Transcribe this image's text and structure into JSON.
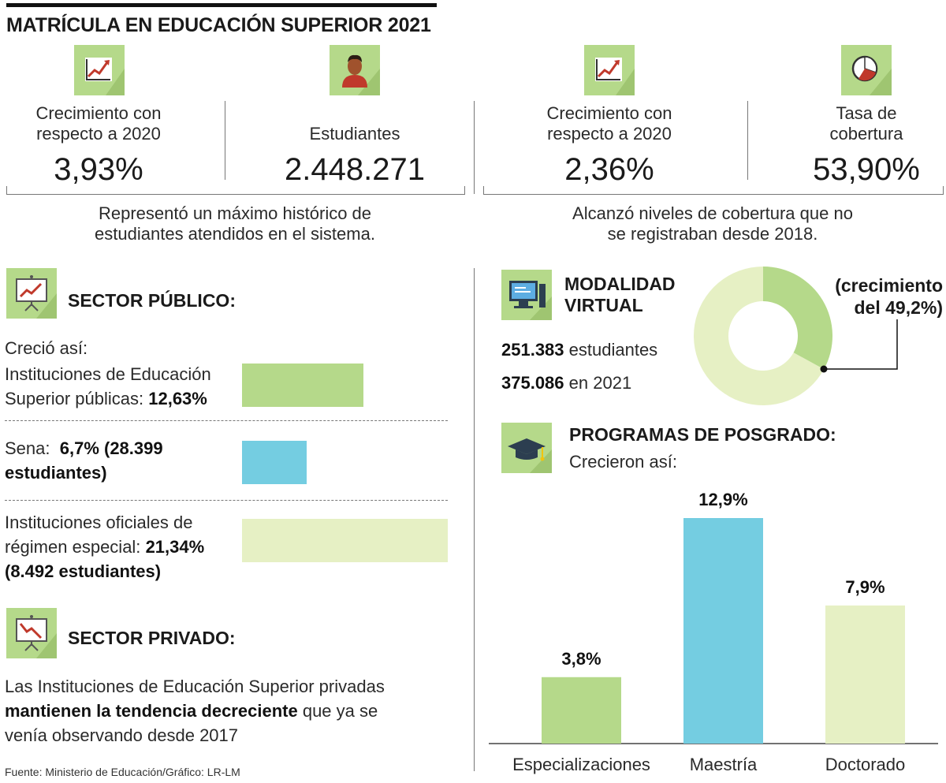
{
  "title": "MATRÍCULA EN EDUCACIÓN SUPERIOR 2021",
  "stats": [
    {
      "label": "Crecimiento con respecto a 2020",
      "value": "3,93%",
      "icon": "chart-growth-icon"
    },
    {
      "label": "Estudiantes",
      "value": "2.448.271",
      "icon": "student-icon"
    },
    {
      "label": "Crecimiento con respecto a 2020",
      "value": "2,36%",
      "icon": "chart-growth-icon"
    },
    {
      "label": "Tasa de cobertura",
      "value": "53,90%",
      "icon": "pie-icon"
    }
  ],
  "notes": {
    "left": "Representó un máximo histórico de estudiantes atendidos en el sistema.",
    "right": "Alcanzó niveles de cobertura que no se registraban desde 2018."
  },
  "publico": {
    "heading": "SECTOR PÚBLICO:",
    "intro": "Creció así:",
    "items": [
      {
        "text": "Instituciones de Educación Superior públicas:",
        "bold": "12,63%",
        "value": 12.63,
        "color": "#b5d98a"
      },
      {
        "text": "Sena:",
        "bold": "6,7% (28.399 estudiantes)",
        "value": 6.7,
        "color": "#74cde1"
      },
      {
        "text": "Instituciones oficiales de régimen especial:",
        "bold": "21,34% (8.492 estudiantes)",
        "value": 21.34,
        "color": "#e6f0c4"
      }
    ]
  },
  "privado": {
    "heading": "SECTOR PRIVADO:",
    "text1": "Las Instituciones de Educación Superior privadas",
    "bold": "mantienen la tendencia decreciente",
    "text2": "que ya se venía observando desde 2017"
  },
  "virtual": {
    "heading_line1": "MODALIDAD",
    "heading_line2": "VIRTUAL",
    "line1_bold": "251.383",
    "line1_text": "estudiantes",
    "line2_bold": "375.086",
    "line2_text": "en 2021",
    "callout_line1": "(crecimiento",
    "callout_line2": "del 49,2%)",
    "donut": {
      "before": 251383,
      "growth": 123703,
      "color_before": "#e6f0c4",
      "color_growth": "#b5d98a"
    }
  },
  "posgrado": {
    "heading": "PROGRAMAS DE POSGRADO:",
    "subheading": "Crecieron así:"
  },
  "chart_data": {
    "type": "bar",
    "categories": [
      "Especializaciones",
      "Maestría",
      "Doctorado"
    ],
    "values": [
      3.8,
      12.9,
      7.9
    ],
    "labels": [
      "3,8%",
      "12,9%",
      "7,9%"
    ],
    "colors": [
      "#b5d98a",
      "#74cde1",
      "#e6f0c4"
    ],
    "ylim": [
      0,
      12.9
    ],
    "grid": false
  },
  "source": "Fuente:  Ministerio de Educación/Gráfico: LR-LM"
}
